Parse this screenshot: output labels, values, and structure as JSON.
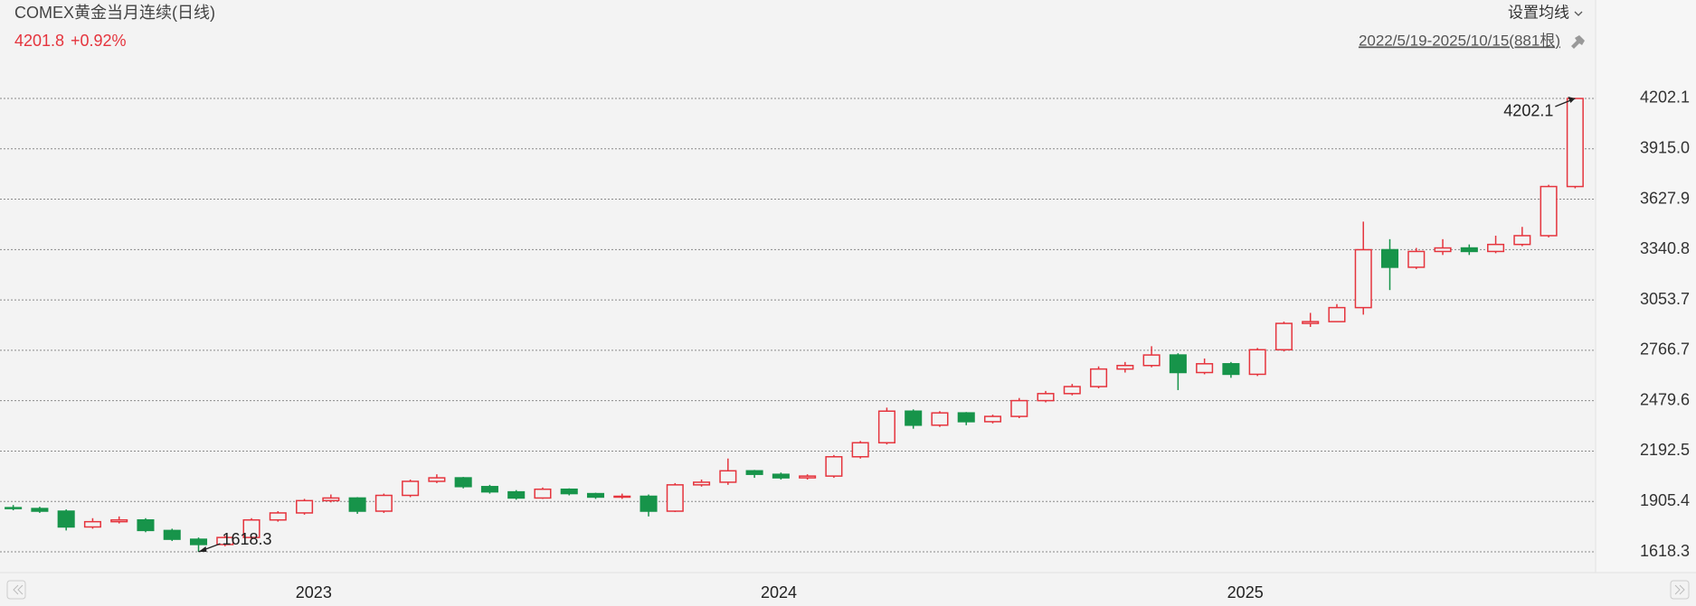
{
  "header": {
    "title": "COMEX黄金当月连续(日线)",
    "price": "4201.8",
    "change": "+0.92%",
    "ma_setting": "设置均线",
    "range": "2022/5/19-2025/10/15(881根)"
  },
  "chart_data": {
    "type": "candlestick",
    "up_color": "#e5343d",
    "down_color": "#17944a",
    "open": [
      1870,
      1865,
      1850,
      1760,
      1790,
      1800,
      1740,
      1690,
      1660,
      1700,
      1800,
      1840,
      1910,
      1925,
      1850,
      1940,
      2020,
      2040,
      1990,
      1960,
      1925,
      1975,
      1950,
      1930,
      1935,
      1850,
      2000,
      2015,
      2080,
      2060,
      2040,
      2050,
      2160,
      2240,
      2420,
      2340,
      2410,
      2360,
      2390,
      2480,
      2520,
      2560,
      2660,
      2680,
      2740,
      2640,
      2690,
      2630,
      2770,
      2920,
      2930,
      3010,
      3340,
      3240,
      3330,
      3350,
      3330,
      3370,
      3420,
      3700
    ],
    "high": [
      1885,
      1875,
      1860,
      1810,
      1820,
      1810,
      1750,
      1700,
      1710,
      1810,
      1850,
      1920,
      1945,
      1930,
      1950,
      2030,
      2060,
      2045,
      2000,
      1970,
      1985,
      1980,
      1955,
      1950,
      1945,
      2010,
      2030,
      2150,
      2085,
      2070,
      2060,
      2170,
      2250,
      2440,
      2430,
      2420,
      2415,
      2400,
      2495,
      2535,
      2575,
      2675,
      2700,
      2790,
      2750,
      2720,
      2700,
      2780,
      2930,
      2980,
      3030,
      3500,
      3400,
      3350,
      3400,
      3370,
      3420,
      3470,
      3710,
      4202.1
    ],
    "low": [
      1855,
      1840,
      1740,
      1750,
      1780,
      1730,
      1680,
      1618.3,
      1650,
      1690,
      1790,
      1830,
      1900,
      1835,
      1840,
      1930,
      2010,
      1980,
      1950,
      1915,
      1920,
      1940,
      1920,
      1920,
      1820,
      1845,
      1990,
      2000,
      2040,
      2030,
      2030,
      2040,
      2150,
      2230,
      2320,
      2330,
      2340,
      2350,
      2380,
      2470,
      2510,
      2550,
      2640,
      2670,
      2540,
      2630,
      2610,
      2620,
      2760,
      2900,
      2930,
      2970,
      3110,
      3230,
      3310,
      3310,
      3320,
      3360,
      3410,
      3690
    ],
    "close": [
      1865,
      1850,
      1760,
      1790,
      1800,
      1740,
      1690,
      1660,
      1700,
      1800,
      1840,
      1910,
      1925,
      1850,
      1940,
      2020,
      2040,
      1990,
      1960,
      1925,
      1975,
      1950,
      1930,
      1935,
      1850,
      2000,
      2015,
      2080,
      2060,
      2040,
      2050,
      2160,
      2240,
      2420,
      2340,
      2410,
      2360,
      2390,
      2480,
      2520,
      2560,
      2660,
      2680,
      2740,
      2640,
      2690,
      2630,
      2770,
      2920,
      2930,
      3010,
      3340,
      3240,
      3330,
      3350,
      3330,
      3370,
      3420,
      3700,
      4201.8
    ],
    "xlim": [
      0,
      60
    ],
    "xticks": [
      {
        "value": 11.85,
        "label": "2023"
      },
      {
        "value": 29.42,
        "label": "2024"
      },
      {
        "value": 47.04,
        "label": "2025"
      }
    ],
    "ylim": [
      1500,
      4341
    ],
    "yticks": [
      1618.3,
      1905.4,
      2192.5,
      2479.6,
      2766.7,
      {
        "value": 3053.7,
        "label": "3053.7"
      },
      3340.8,
      3627.9,
      {
        "value": 3915,
        "label": "3915.0"
      },
      4202.1
    ],
    "grid": true
  }
}
